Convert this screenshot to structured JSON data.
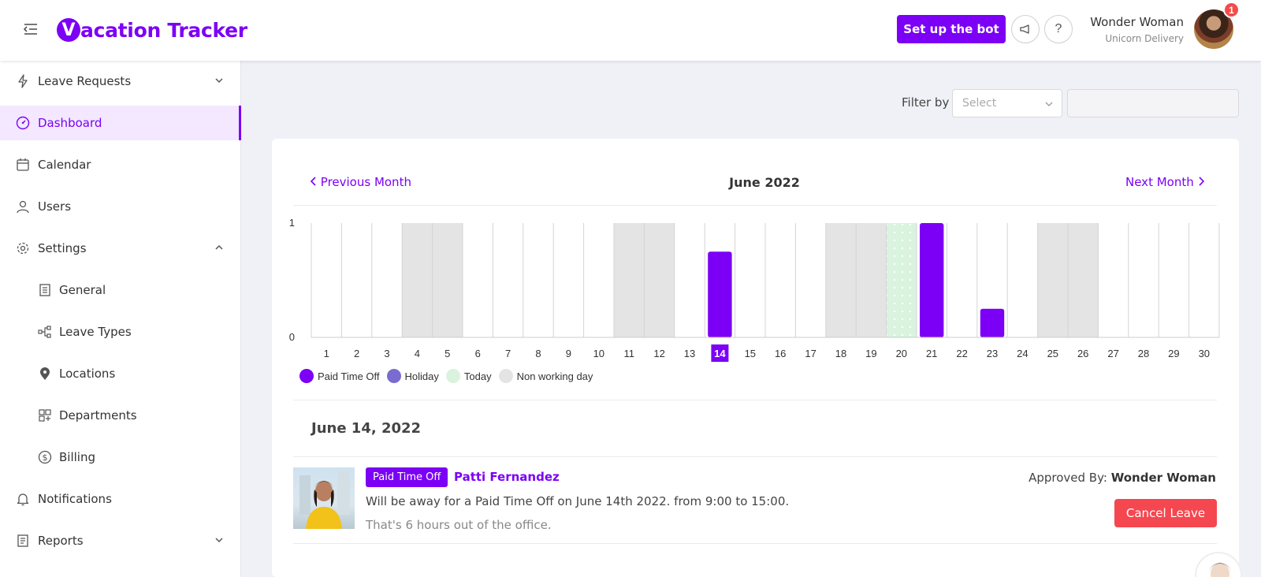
{
  "header": {
    "logo_mark": "V",
    "logo_text": "acation Tracker",
    "setup_bot_label": "Set up the bot",
    "user_name": "Wonder Woman",
    "user_company": "Unicorn Delivery",
    "notification_count": "1"
  },
  "sidebar": {
    "items": [
      {
        "label": "Leave Requests",
        "icon": "lightning-icon",
        "expandable": "down"
      },
      {
        "label": "Dashboard",
        "icon": "dashboard-icon",
        "active": true
      },
      {
        "label": "Calendar",
        "icon": "calendar-icon"
      },
      {
        "label": "Users",
        "icon": "user-icon"
      },
      {
        "label": "Settings",
        "icon": "gear-icon",
        "expandable": "up"
      },
      {
        "label": "General",
        "icon": "building-icon",
        "sub": true
      },
      {
        "label": "Leave Types",
        "icon": "hierarchy-icon",
        "sub": true
      },
      {
        "label": "Locations",
        "icon": "location-pin-icon",
        "sub": true
      },
      {
        "label": "Departments",
        "icon": "departments-icon",
        "sub": true
      },
      {
        "label": "Billing",
        "icon": "dollar-icon",
        "sub": true
      },
      {
        "label": "Notifications",
        "icon": "bell-icon"
      },
      {
        "label": "Reports",
        "icon": "reports-icon",
        "expandable": "down"
      }
    ]
  },
  "filter": {
    "label": "Filter by",
    "select_placeholder": "Select"
  },
  "calendar": {
    "prev_label": "Previous Month",
    "next_label": "Next Month",
    "month_title": "June 2022"
  },
  "chart_data": {
    "type": "bar",
    "categories": [
      "1",
      "2",
      "3",
      "4",
      "5",
      "6",
      "7",
      "8",
      "9",
      "10",
      "11",
      "12",
      "13",
      "14",
      "15",
      "16",
      "17",
      "18",
      "19",
      "20",
      "21",
      "22",
      "23",
      "24",
      "25",
      "26",
      "27",
      "28",
      "29",
      "30"
    ],
    "values": [
      0,
      0,
      0,
      0,
      0,
      0,
      0,
      0,
      0,
      0,
      0,
      0,
      0,
      0.75,
      0,
      0,
      0,
      0,
      0,
      0,
      1,
      0,
      0.25,
      0,
      0,
      0,
      0,
      0,
      0,
      0
    ],
    "non_working_days": [
      "4",
      "5",
      "11",
      "12",
      "18",
      "19",
      "25",
      "26"
    ],
    "today": "20",
    "selected_day": "14",
    "ylim": [
      0,
      1
    ],
    "yticks": [
      "0",
      "1"
    ],
    "colors": {
      "paid_time_off": "#7b00f5",
      "holiday": "#7a6bd0",
      "today": "#d9f3df",
      "non_working": "#e4e4e4"
    },
    "legend": [
      {
        "label": "Paid Time Off",
        "color": "#7b00f5"
      },
      {
        "label": "Holiday",
        "color": "#7a6bd0"
      },
      {
        "label": "Today",
        "color": "#d9f3df"
      },
      {
        "label": "Non working day",
        "color": "#e4e4e4"
      }
    ]
  },
  "day_detail": {
    "heading": "June 14, 2022",
    "leave_type": "Paid Time Off",
    "user": "Patti Fernandez",
    "description": "Will be away for a Paid Time Off on June 14th 2022. from 9:00 to 15:00.",
    "hours_note": "That's 6 hours out of the office.",
    "approved_prefix": "Approved By:",
    "approved_by": "Wonder Woman",
    "cancel_label": "Cancel Leave"
  }
}
